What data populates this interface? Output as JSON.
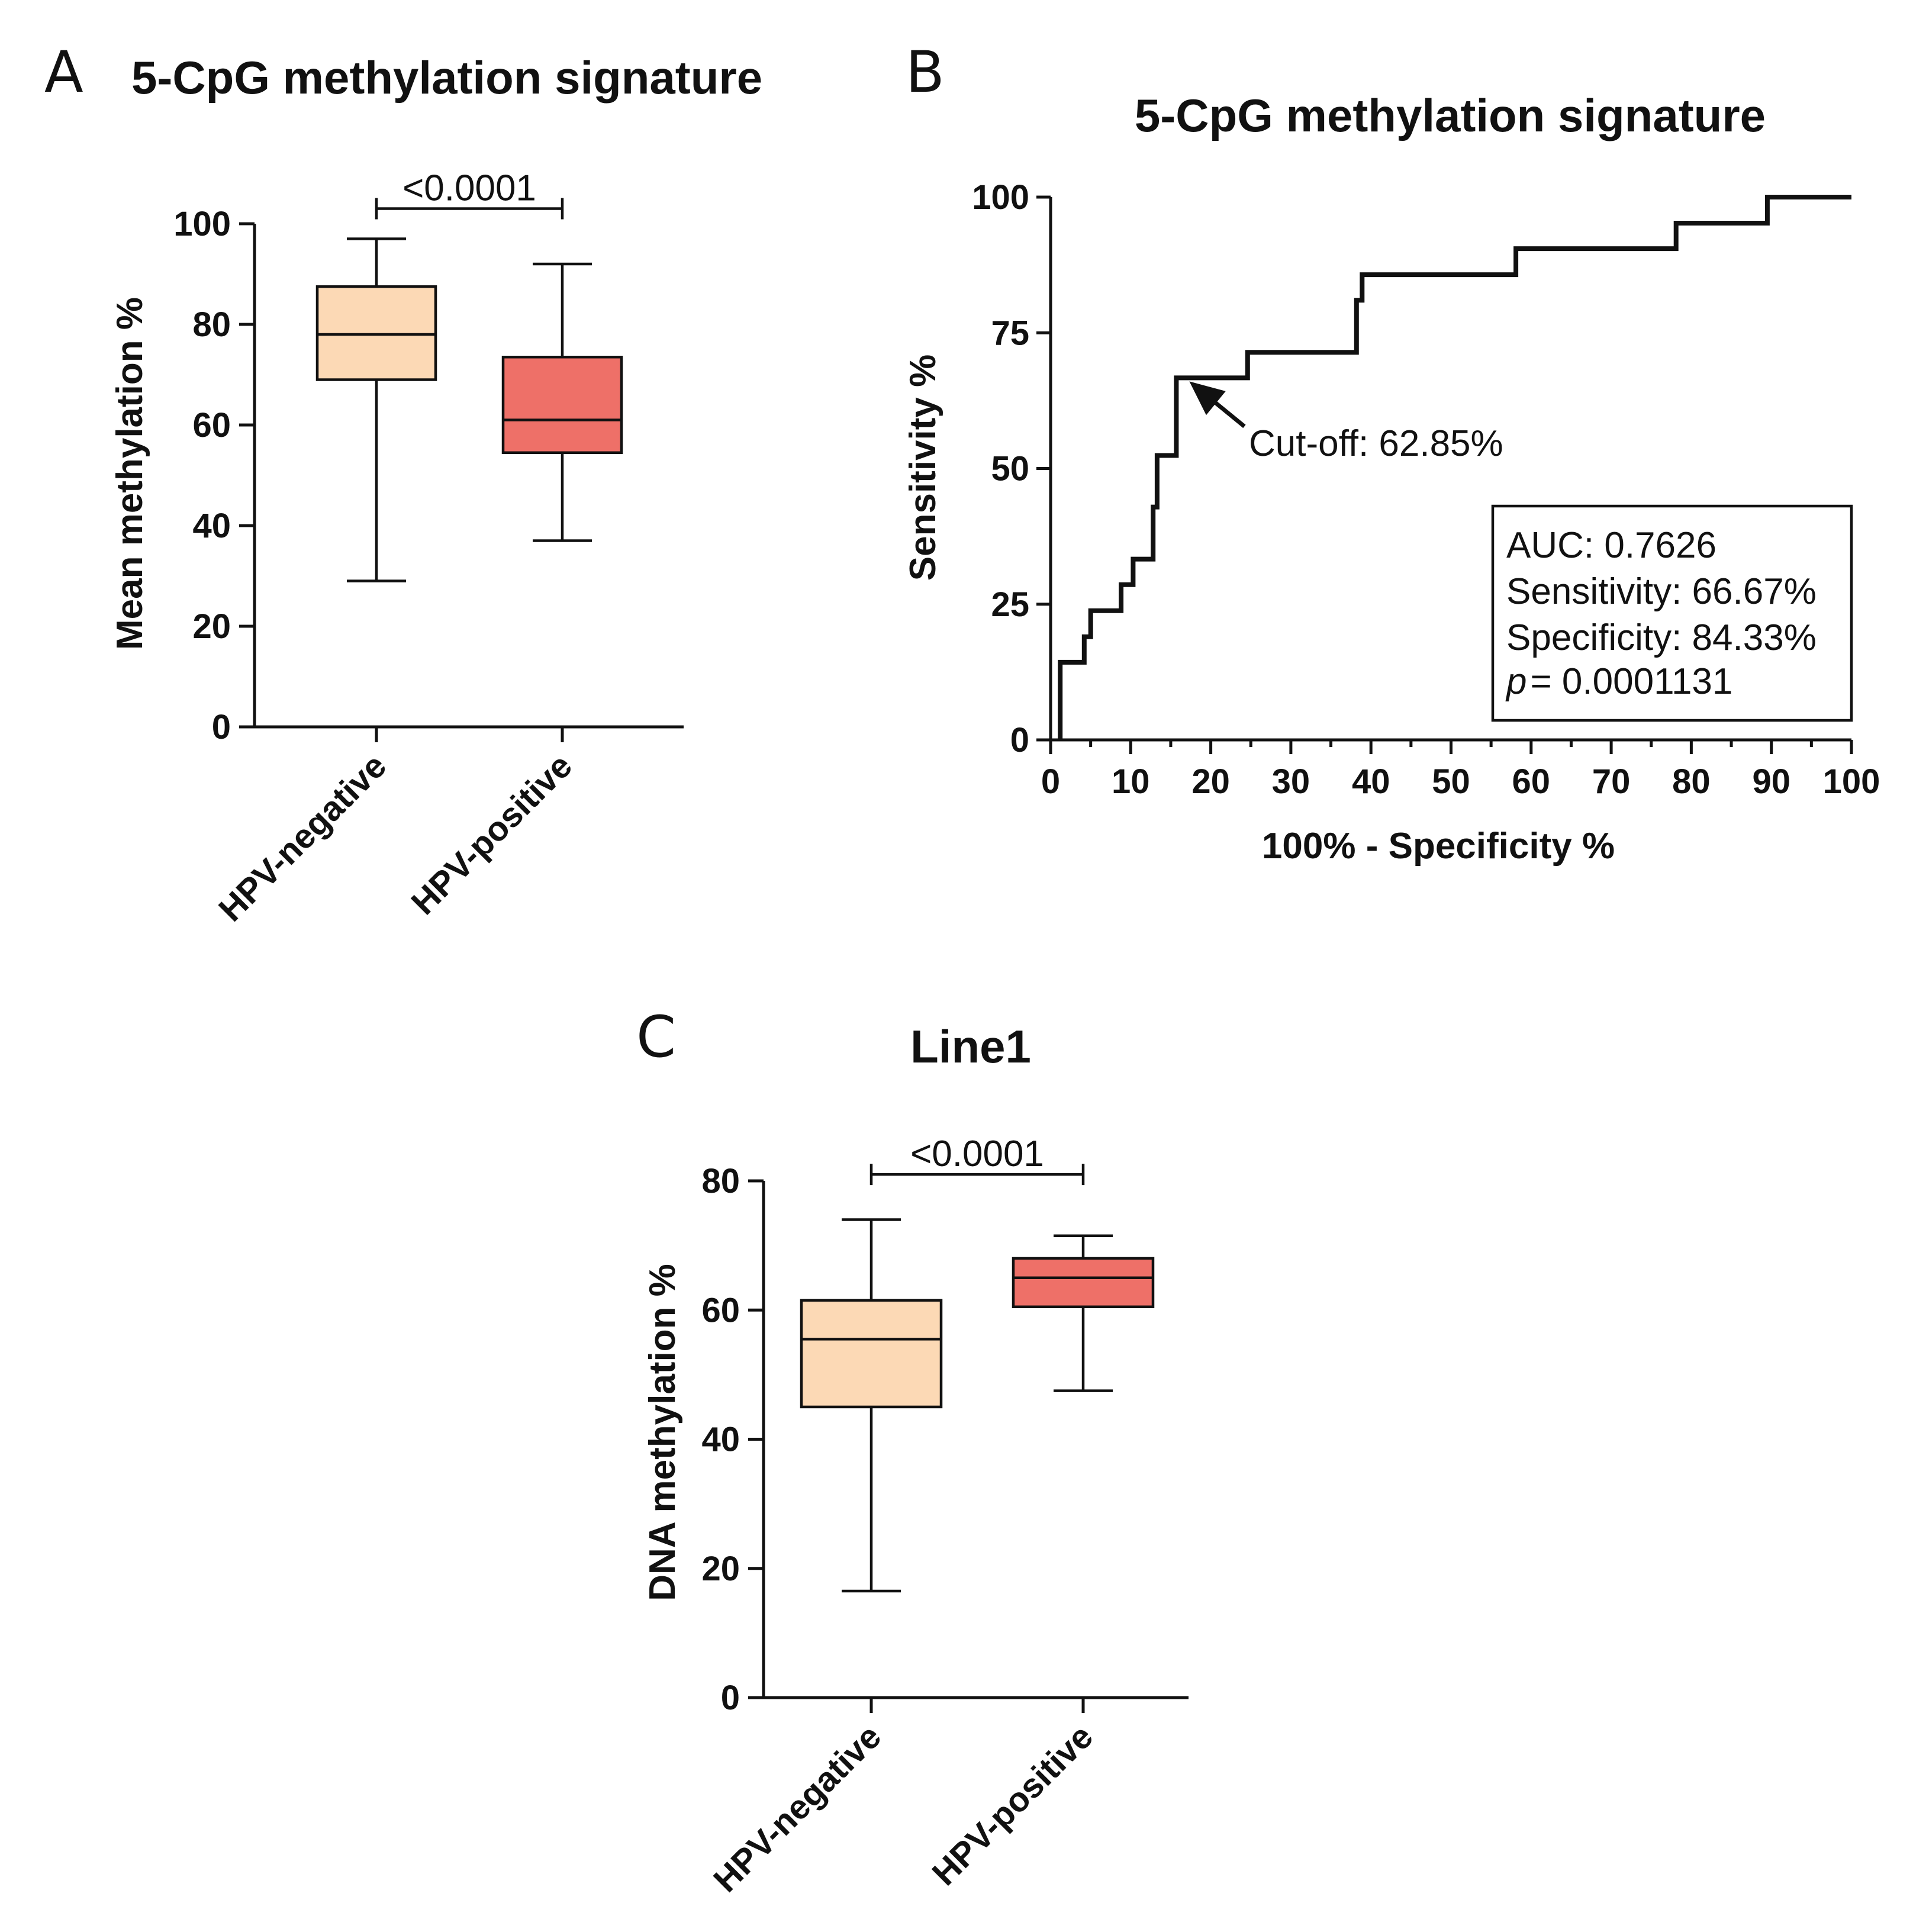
{
  "panels": {
    "a": {
      "letter": "A",
      "title": "5-CpG methylation signature",
      "ylabel": "Mean methylation %",
      "pvalue": "<0.0001"
    },
    "b": {
      "letter": "B",
      "title": "5-CpG methylation signature",
      "ylabel": "Sensitivity %",
      "xlabel": "100% - Specificity %",
      "cutoff_label": "Cut-off: 62.85%",
      "stats": {
        "auc": "AUC: 0.7626",
        "sensitivity": "Sensitivity: 66.67%",
        "specificity": "Specificity: 84.33%",
        "p_symbol": "p",
        "p_value": "= 0.0001131"
      }
    },
    "c": {
      "letter": "C",
      "title": "Line1",
      "ylabel": "DNA methylation %",
      "pvalue": "<0.0001"
    }
  },
  "colors": {
    "hpv_negative": "#fcd9b5",
    "hpv_positive": "#ee7068",
    "ink": "#111111"
  },
  "chart_data": [
    {
      "type": "box",
      "title": "5-CpG methylation signature",
      "ylabel": "Mean methylation %",
      "xlabel": "",
      "categories": [
        "HPV-negative",
        "HPV-positive"
      ],
      "ylim": [
        0,
        100
      ],
      "yticks": [
        0,
        20,
        40,
        60,
        80,
        100
      ],
      "boxes": [
        {
          "name": "HPV-negative",
          "min": 29,
          "q1": 69,
          "median": 78,
          "q3": 87.5,
          "max": 97
        },
        {
          "name": "HPV-positive",
          "min": 37,
          "q1": 54.5,
          "median": 61,
          "q3": 73.5,
          "max": 92
        }
      ],
      "comparison": {
        "label": "<0.0001",
        "y": 103
      }
    },
    {
      "type": "line",
      "title": "5-CpG methylation signature",
      "xlabel": "100% - Specificity %",
      "ylabel": "Sensitivity %",
      "xlim": [
        0,
        100
      ],
      "ylim": [
        0,
        100
      ],
      "xticks": [
        0,
        10,
        20,
        30,
        40,
        50,
        60,
        70,
        80,
        90,
        100
      ],
      "yticks": [
        0,
        25,
        50,
        75,
        100
      ],
      "x": [
        1.2,
        1.2,
        4.2,
        4.2,
        5.0,
        5.0,
        8.8,
        8.8,
        10.3,
        10.3,
        12.8,
        12.8,
        13.3,
        13.3,
        15.7,
        15.7,
        24.6,
        24.6,
        38.2,
        38.2,
        38.9,
        38.9,
        58.1,
        58.1,
        78.1,
        78.1,
        89.5,
        89.5,
        100
      ],
      "y": [
        0,
        14.3,
        14.3,
        19.0,
        19.0,
        23.8,
        23.8,
        28.6,
        28.6,
        33.3,
        33.3,
        42.9,
        42.9,
        52.4,
        52.4,
        66.7,
        66.7,
        71.4,
        71.4,
        81.0,
        81.0,
        85.7,
        85.7,
        90.5,
        90.5,
        95.2,
        95.2,
        100,
        100
      ],
      "cutoff_point": {
        "x": 15.7,
        "y": 66.7,
        "label": "Cut-off: 62.85%"
      },
      "stats": [
        "AUC: 0.7626",
        "Sensitivity: 66.67%",
        "Specificity: 84.33%",
        "p = 0.0001131"
      ]
    },
    {
      "type": "box",
      "title": "Line1",
      "ylabel": "DNA methylation %",
      "xlabel": "",
      "categories": [
        "HPV-negative",
        "HPV-positive"
      ],
      "ylim": [
        0,
        80
      ],
      "yticks": [
        0,
        20,
        40,
        60,
        80
      ],
      "boxes": [
        {
          "name": "HPV-negative",
          "min": 16.5,
          "q1": 45,
          "median": 55.5,
          "q3": 61.5,
          "max": 74
        },
        {
          "name": "HPV-positive",
          "min": 47.5,
          "q1": 60.5,
          "median": 65,
          "q3": 68,
          "max": 71.5
        }
      ],
      "comparison": {
        "label": "<0.0001",
        "y": 81
      }
    }
  ]
}
